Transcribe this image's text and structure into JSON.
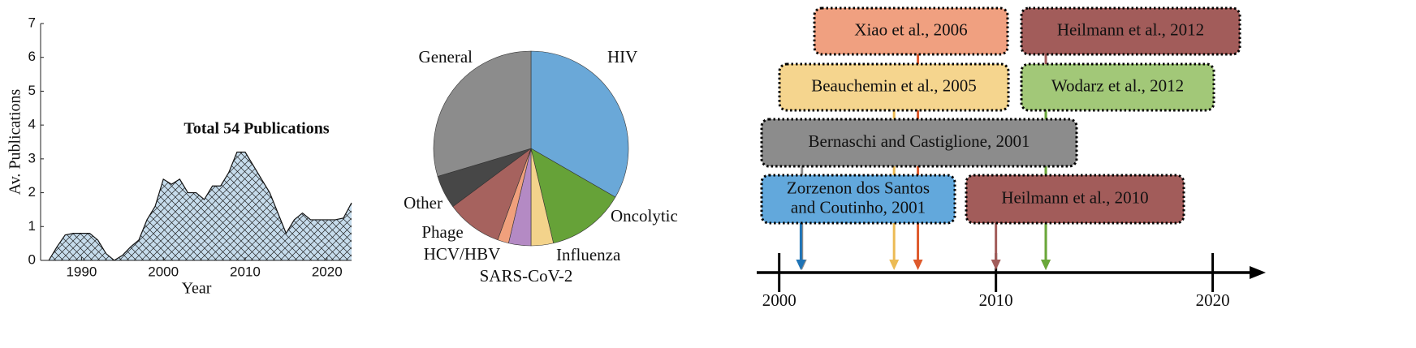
{
  "chart_data": [
    {
      "type": "area",
      "annotation": "Total 54 Publications",
      "xlabel": "Year",
      "ylabel": "Av. Publications",
      "x": [
        1986,
        1987,
        1988,
        1989,
        1990,
        1991,
        1992,
        1993,
        1994,
        1995,
        1996,
        1997,
        1998,
        1999,
        2000,
        2001,
        2002,
        2003,
        2004,
        2005,
        2006,
        2007,
        2008,
        2009,
        2010,
        2011,
        2012,
        2013,
        2014,
        2015,
        2016,
        2017,
        2018,
        2019,
        2020,
        2021,
        2022,
        2023
      ],
      "values": [
        0,
        0.4,
        0.75,
        0.8,
        0.8,
        0.8,
        0.6,
        0.2,
        0,
        0.15,
        0.4,
        0.6,
        1.2,
        1.6,
        2.4,
        2.25,
        2.4,
        2.0,
        2.0,
        1.8,
        2.2,
        2.2,
        2.6,
        3.2,
        3.2,
        2.8,
        2.4,
        2.0,
        1.4,
        0.8,
        1.2,
        1.4,
        1.2,
        1.2,
        1.2,
        1.2,
        1.25,
        1.7
      ],
      "color": "#c6dcec",
      "xlim": [
        1985,
        2023
      ],
      "ylim": [
        0,
        7
      ],
      "xticks": [
        1990,
        2000,
        2010,
        2020
      ],
      "yticks": [
        0,
        1,
        2,
        3,
        4,
        5,
        6,
        7
      ]
    },
    {
      "type": "pie",
      "categories": [
        "HIV",
        "Oncolytic",
        "Influenza",
        "SARS-CoV-2",
        "HCV/HBV",
        "Phage",
        "Other",
        "General"
      ],
      "values": [
        18,
        7,
        2,
        2,
        1,
        5,
        3,
        16
      ],
      "colors": [
        "#6aa8d8",
        "#66a238",
        "#f3d38b",
        "#b48ac4",
        "#f0a07c",
        "#a6625e",
        "#474747",
        "#8c8c8c"
      ]
    },
    {
      "type": "timeline",
      "xlim": [
        1999,
        2022.3
      ],
      "xticks": [
        2000,
        2010,
        2020
      ],
      "events": [
        {
          "label": [
            "Bernaschi and Castiglione, 2001"
          ],
          "year": 2001.05,
          "color": "#8c8c8c",
          "arrow_color": "#8c8c8c"
        },
        {
          "label": [
            "Zorzenon dos Santos",
            "and Coutinho, 2001"
          ],
          "year": 2001,
          "color": "#62a8dc",
          "arrow_color": "#1f74b6"
        },
        {
          "label": [
            "Beauchemin et al., 2005"
          ],
          "year": 2005.3,
          "color": "#f5d58e",
          "arrow_color": "#ecbb55"
        },
        {
          "label": [
            "Xiao et al., 2006"
          ],
          "year": 2006.4,
          "color": "#f0a080",
          "arrow_color": "#de5a2c"
        },
        {
          "label": [
            "Heilmann et al., 2010"
          ],
          "year": 2010,
          "color": "#a25c5a",
          "arrow_color": "#a25c5a"
        },
        {
          "label": [
            "Heilmann et al., 2012"
          ],
          "year": 2012.3,
          "color": "#a25c5a",
          "arrow_color": "#a25c5a"
        },
        {
          "label": [
            "Wodarz et al., 2012"
          ],
          "year": 2012.3,
          "color": "#a2c878",
          "arrow_color": "#6aa83a"
        }
      ]
    }
  ]
}
